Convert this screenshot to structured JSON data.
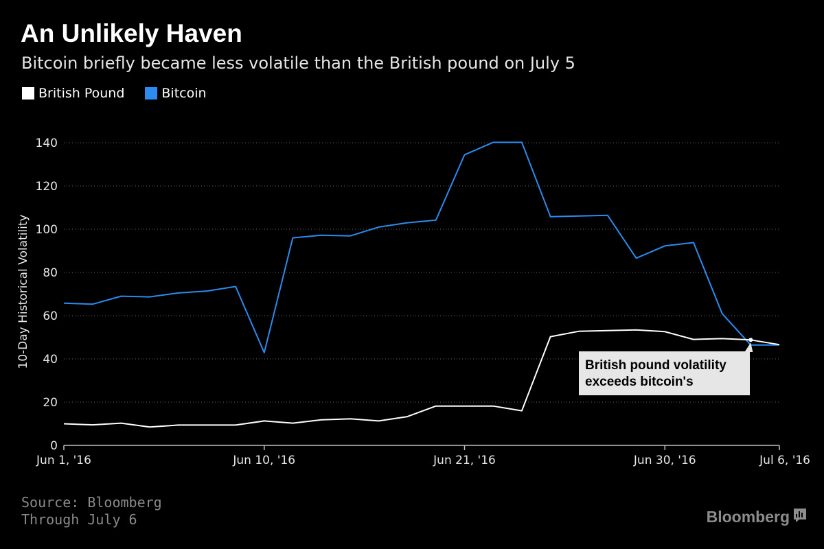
{
  "header": {
    "title": "An Unlikely Haven",
    "subtitle": "Bitcoin briefly became less volatile than the British pound on July 5"
  },
  "footer": {
    "source_line1": "Source: Bloomberg",
    "source_line2": "Through July 6",
    "brand": "Bloomberg",
    "brand_icon": "bloomberg-chart-icon"
  },
  "colors": {
    "background": "#000000",
    "pound": "#ffffff",
    "bitcoin": "#2b8cf0",
    "grid": "#666666",
    "annotation_bg": "#e6e6e6"
  },
  "chart_data": {
    "type": "line",
    "title": "An Unlikely Haven",
    "subtitle": "Bitcoin briefly became less volatile than the British pound on July 5",
    "ylabel": "10-Day Historical Volatility",
    "xlabel": "",
    "ylim": [
      0,
      140
    ],
    "yticks": [
      0,
      20,
      40,
      60,
      80,
      100,
      120,
      140
    ],
    "grid": "horizontal dotted",
    "legend_position": "top-left",
    "x": [
      "2016-06-01",
      "2016-06-02",
      "2016-06-03",
      "2016-06-06",
      "2016-06-07",
      "2016-06-08",
      "2016-06-09",
      "2016-06-10",
      "2016-06-13",
      "2016-06-14",
      "2016-06-15",
      "2016-06-16",
      "2016-06-17",
      "2016-06-20",
      "2016-06-21",
      "2016-06-22",
      "2016-06-23",
      "2016-06-24",
      "2016-06-27",
      "2016-06-28",
      "2016-06-29",
      "2016-06-30",
      "2016-07-01",
      "2016-07-04",
      "2016-07-05",
      "2016-07-06"
    ],
    "xticks": [
      {
        "index": 0,
        "label": "Jun 1, '16"
      },
      {
        "index": 7,
        "label": "Jun 10, '16"
      },
      {
        "index": 14,
        "label": "Jun 21, '16"
      },
      {
        "index": 21,
        "label": "Jun 30, '16"
      },
      {
        "index": 25,
        "label": "Jul 6, '16"
      }
    ],
    "series": [
      {
        "name": "British Pound",
        "color": "#ffffff",
        "values": [
          10,
          9.5,
          10.3,
          8.5,
          9.4,
          9.4,
          9.4,
          11.3,
          10.3,
          11.8,
          12.3,
          11.3,
          13.3,
          18.2,
          18.2,
          18.2,
          16.0,
          50.3,
          52.8,
          53.1,
          53.4,
          52.6,
          49.0,
          49.4,
          48.8,
          46.6
        ]
      },
      {
        "name": "Bitcoin",
        "color": "#2b8cf0",
        "values": [
          65.8,
          65.3,
          69.0,
          68.7,
          70.5,
          71.4,
          73.5,
          42.9,
          96.0,
          97.2,
          96.9,
          101.0,
          103.0,
          104.2,
          134.4,
          140.2,
          140.2,
          105.8,
          106.1,
          106.4,
          86.6,
          92.3,
          93.8,
          61.0,
          46.4,
          46.4
        ]
      }
    ],
    "annotation": {
      "text_line1": "British pound volatility",
      "text_line2": "exceeds bitcoin's",
      "point_index": 24,
      "point_value": 48.8
    }
  }
}
